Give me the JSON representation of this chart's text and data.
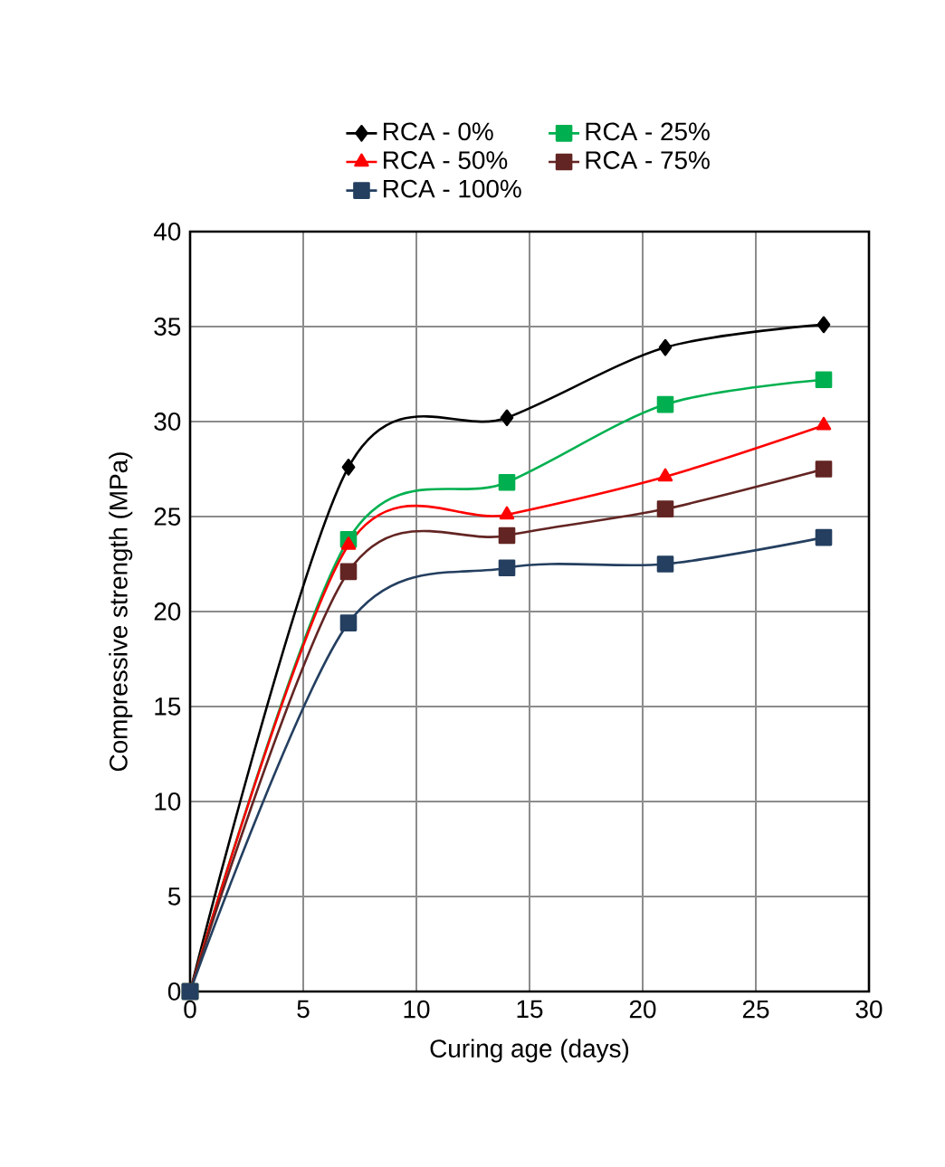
{
  "chart_data": {
    "type": "line",
    "xlabel": "Curing age (days)",
    "ylabel": "Compressive strength (MPa)",
    "x": [
      0,
      7,
      14,
      21,
      28
    ],
    "series": [
      {
        "name": "RCA - 0%",
        "color": "#000000",
        "marker": "diamond",
        "values": [
          0,
          27.6,
          30.2,
          33.9,
          35.1
        ]
      },
      {
        "name": "RCA - 25%",
        "color": "#00b050",
        "marker": "square",
        "values": [
          0,
          23.8,
          26.8,
          30.9,
          32.2
        ]
      },
      {
        "name": "RCA - 50%",
        "color": "#ff0000",
        "marker": "triangle",
        "values": [
          0,
          23.5,
          25.1,
          27.1,
          29.8
        ]
      },
      {
        "name": "RCA - 75%",
        "color": "#632523",
        "marker": "square",
        "values": [
          0,
          22.1,
          24.0,
          25.4,
          27.5
        ]
      },
      {
        "name": "RCA - 100%",
        "color": "#243f60",
        "marker": "square",
        "values": [
          0,
          19.4,
          22.3,
          22.5,
          23.9
        ]
      }
    ],
    "xlim": [
      0,
      30
    ],
    "xticks": [
      0,
      5,
      10,
      15,
      20,
      25,
      30
    ],
    "ylim": [
      0,
      40
    ],
    "yticks": [
      0,
      5,
      10,
      15,
      20,
      25,
      30,
      35,
      40
    ],
    "grid": true,
    "legend": "top",
    "line_style": "solid"
  }
}
